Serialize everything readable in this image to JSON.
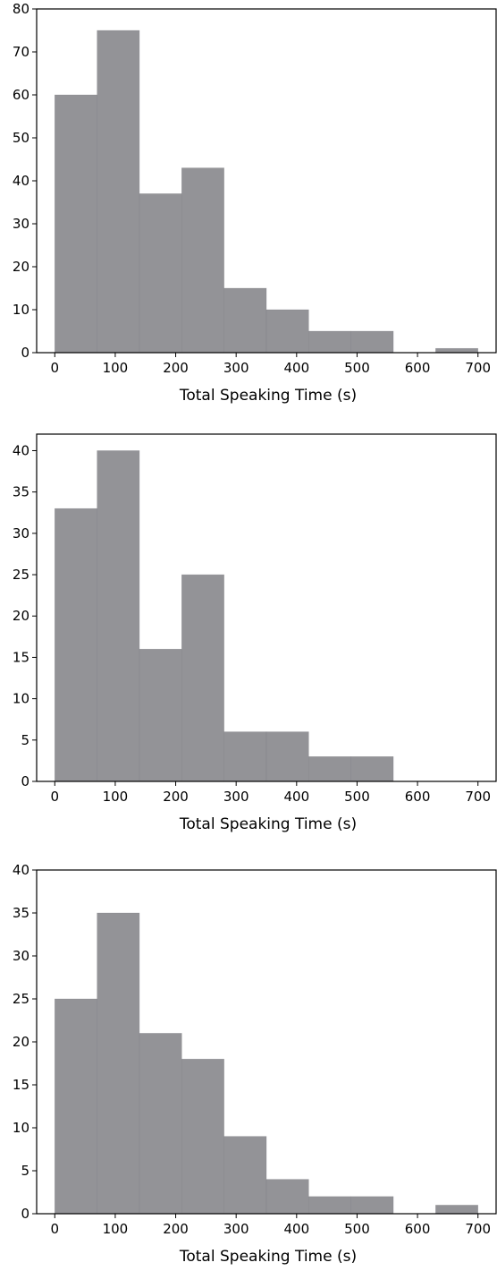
{
  "chart_data": [
    {
      "type": "bar",
      "bin_edges": [
        0,
        70,
        140,
        210,
        280,
        350,
        420,
        490,
        560,
        630,
        700
      ],
      "values": [
        60,
        75,
        37,
        43,
        15,
        10,
        5,
        5,
        0,
        1
      ],
      "xlabel": "Total Speaking Time (s)",
      "ylabel": "",
      "xlim": [
        -30,
        730
      ],
      "ylim": [
        0,
        80
      ],
      "xticks": [
        0,
        100,
        200,
        300,
        400,
        500,
        600,
        700
      ],
      "yticks": [
        0,
        10,
        20,
        30,
        40,
        50,
        60,
        70,
        80
      ],
      "bar_color": "#808085",
      "grid": false
    },
    {
      "type": "bar",
      "bin_edges": [
        0,
        70,
        140,
        210,
        280,
        350,
        420,
        490,
        560,
        630,
        700
      ],
      "values": [
        33,
        40,
        16,
        25,
        6,
        6,
        3,
        3,
        0,
        0
      ],
      "xlabel": "Total Speaking Time (s)",
      "ylabel": "",
      "xlim": [
        -30,
        730
      ],
      "ylim": [
        0,
        42
      ],
      "xticks": [
        0,
        100,
        200,
        300,
        400,
        500,
        600,
        700
      ],
      "yticks": [
        0,
        5,
        10,
        15,
        20,
        25,
        30,
        35,
        40
      ],
      "bar_color": "#808085",
      "grid": false
    },
    {
      "type": "bar",
      "bin_edges": [
        0,
        70,
        140,
        210,
        280,
        350,
        420,
        490,
        560,
        630,
        700
      ],
      "values": [
        25,
        35,
        21,
        18,
        9,
        4,
        2,
        2,
        0,
        1
      ],
      "xlabel": "Total Speaking Time (s)",
      "ylabel": "",
      "xlim": [
        -30,
        730
      ],
      "ylim": [
        0,
        40
      ],
      "xticks": [
        0,
        100,
        200,
        300,
        400,
        500,
        600,
        700
      ],
      "yticks": [
        0,
        5,
        10,
        15,
        20,
        25,
        30,
        35,
        40
      ],
      "bar_color": "#808085",
      "grid": false
    }
  ]
}
